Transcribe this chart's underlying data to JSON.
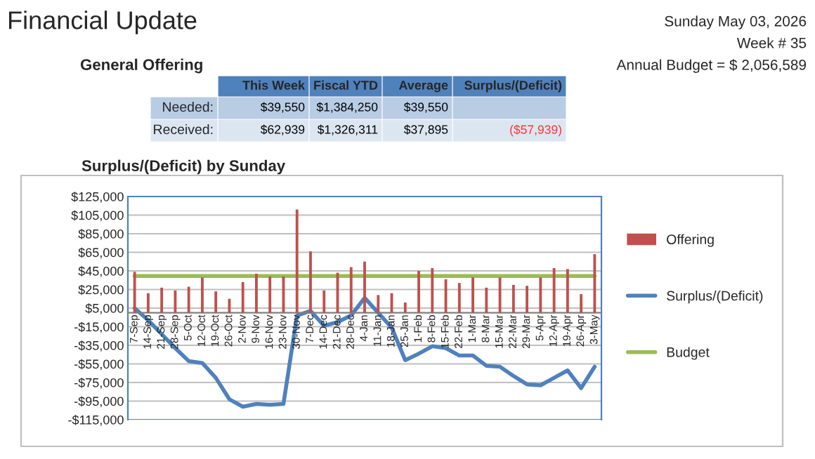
{
  "chart_data": [
    {
      "type": "other",
      "title": "Financial Update",
      "subtitle": "General Offering",
      "annotations": [
        "Sunday May 03, 2026",
        "Week # 35",
        "Annual Budget = $ 2,056,589",
        "This Week",
        "Fiscal YTD",
        "Average",
        "Surplus/(Deficit)",
        "Needed:",
        "$39,550",
        "$1,384,250",
        "$39,550",
        "Received:",
        "$62,939",
        "$1,326,311",
        "$37,895",
        "($57,939)"
      ]
    },
    {
      "type": "bar",
      "title": "Surplus/(Deficit) by Sunday",
      "categories": [
        "7-Sep",
        "14-Sep",
        "21-Sep",
        "28-Sep",
        "5-Oct",
        "12-Oct",
        "19-Oct",
        "26-Oct",
        "2-Nov",
        "9-Nov",
        "16-Nov",
        "23-Nov",
        "30-Nov",
        "7-Dec",
        "14-Dec",
        "21-Dec",
        "28-Dec",
        "4-Jan",
        "11-Jan",
        "18-Jan",
        "25-Jan",
        "1-Feb",
        "8-Feb",
        "15-Feb",
        "22-Feb",
        "1-Mar",
        "8-Mar",
        "15-Mar",
        "22-Mar",
        "29-Mar",
        "5-Apr",
        "12-Apr",
        "19-Apr",
        "26-Apr",
        "3-May"
      ],
      "series": [
        {
          "name": "Offering",
          "type": "bar",
          "color": "#c0504d",
          "values": [
            44000,
            21000,
            27000,
            24000,
            28000,
            38000,
            23000,
            15000,
            33000,
            42000,
            39000,
            39000,
            111000,
            66000,
            24000,
            43000,
            49000,
            55000,
            19000,
            21000,
            11000,
            45000,
            48000,
            36000,
            32000,
            38000,
            27000,
            38000,
            30000,
            29000,
            38000,
            48000,
            47000,
            20000,
            63000
          ]
        },
        {
          "name": "Surplus/(Deficit)",
          "type": "line",
          "color": "#4f81bd",
          "values": [
            5000,
            -8000,
            -23000,
            -38000,
            -52000,
            -54000,
            -70000,
            -93000,
            -101000,
            -98000,
            -99000,
            -98000,
            -3000,
            2000,
            -14000,
            -10000,
            -3000,
            16000,
            0,
            -16000,
            -51000,
            -44000,
            -36000,
            -38000,
            -46000,
            -46000,
            -57000,
            -58000,
            -68000,
            -77000,
            -78000,
            -70000,
            -62000,
            -81000,
            -58000
          ]
        },
        {
          "name": "Budget",
          "type": "line",
          "color": "#9bbb59",
          "values": [
            39550,
            39550,
            39550,
            39550,
            39550,
            39550,
            39550,
            39550,
            39550,
            39550,
            39550,
            39550,
            39550,
            39550,
            39550,
            39550,
            39550,
            39550,
            39550,
            39550,
            39550,
            39550,
            39550,
            39550,
            39550,
            39550,
            39550,
            39550,
            39550,
            39550,
            39550,
            39550,
            39550,
            39550,
            39550
          ]
        }
      ],
      "ylim": [
        -115000,
        125000
      ],
      "yticks": [
        {
          "value": 125000,
          "label": "$125,000"
        },
        {
          "value": 105000,
          "label": "$105,000"
        },
        {
          "value": 85000,
          "label": "$85,000"
        },
        {
          "value": 65000,
          "label": "$65,000"
        },
        {
          "value": 45000,
          "label": "$45,000"
        },
        {
          "value": 25000,
          "label": "$25,000"
        },
        {
          "value": 5000,
          "label": "$5,000"
        },
        {
          "value": -15000,
          "label": "-$15,000"
        },
        {
          "value": -35000,
          "label": "-$35,000"
        },
        {
          "value": -55000,
          "label": "-$55,000"
        },
        {
          "value": -75000,
          "label": "-$75,000"
        },
        {
          "value": -95000,
          "label": "-$95,000"
        },
        {
          "value": -115000,
          "label": "-$115,000"
        }
      ],
      "grid": "y",
      "legend": "right"
    }
  ]
}
